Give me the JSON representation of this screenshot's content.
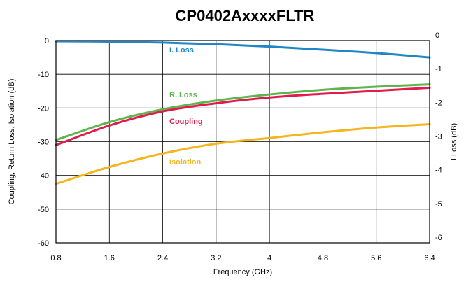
{
  "chart_data": {
    "type": "line",
    "title": "CP0402AxxxxFLTR",
    "xlabel": "Frequency (GHz)",
    "ylabel_left": "Coupling, Return Loss, Isolation (dB)",
    "ylabel_right": "I Loss (dB)",
    "xlim": [
      0.8,
      6.4
    ],
    "ylim_left": [
      -60,
      0
    ],
    "ylim_right": [
      -6,
      0
    ],
    "x_ticks": [
      "0.8",
      "1.6",
      "2.4",
      "3.2",
      "4",
      "4.8",
      "5.6",
      "6.4"
    ],
    "y_ticks_left": [
      "0",
      "-10",
      "-20",
      "-30",
      "-40",
      "-50",
      "-60"
    ],
    "y_ticks_right": [
      "0",
      "-1",
      "-2",
      "-3",
      "-4",
      "-5",
      "-6"
    ],
    "grid": true,
    "x": [
      0.8,
      1.6,
      2.4,
      3.2,
      4.0,
      4.8,
      5.6,
      6.4
    ],
    "series": [
      {
        "name": "I. Loss",
        "axis": "right",
        "color": "#1e87c8",
        "values": [
          -0.02,
          -0.03,
          -0.06,
          -0.11,
          -0.18,
          -0.27,
          -0.37,
          -0.5
        ]
      },
      {
        "name": "R. Loss",
        "axis": "left",
        "color": "#5cb54d",
        "values": [
          -29.5,
          -24.2,
          -20.4,
          -17.8,
          -16.0,
          -14.6,
          -13.7,
          -13.0
        ]
      },
      {
        "name": "Coupling",
        "axis": "left",
        "color": "#e21a4d",
        "values": [
          -31.0,
          -25.2,
          -21.0,
          -18.6,
          -16.9,
          -15.8,
          -14.9,
          -14.0
        ]
      },
      {
        "name": "Isolation",
        "axis": "left",
        "color": "#f4b51e",
        "values": [
          -42.5,
          -37.5,
          -33.5,
          -30.6,
          -28.9,
          -27.2,
          -25.8,
          -24.8
        ]
      }
    ]
  }
}
